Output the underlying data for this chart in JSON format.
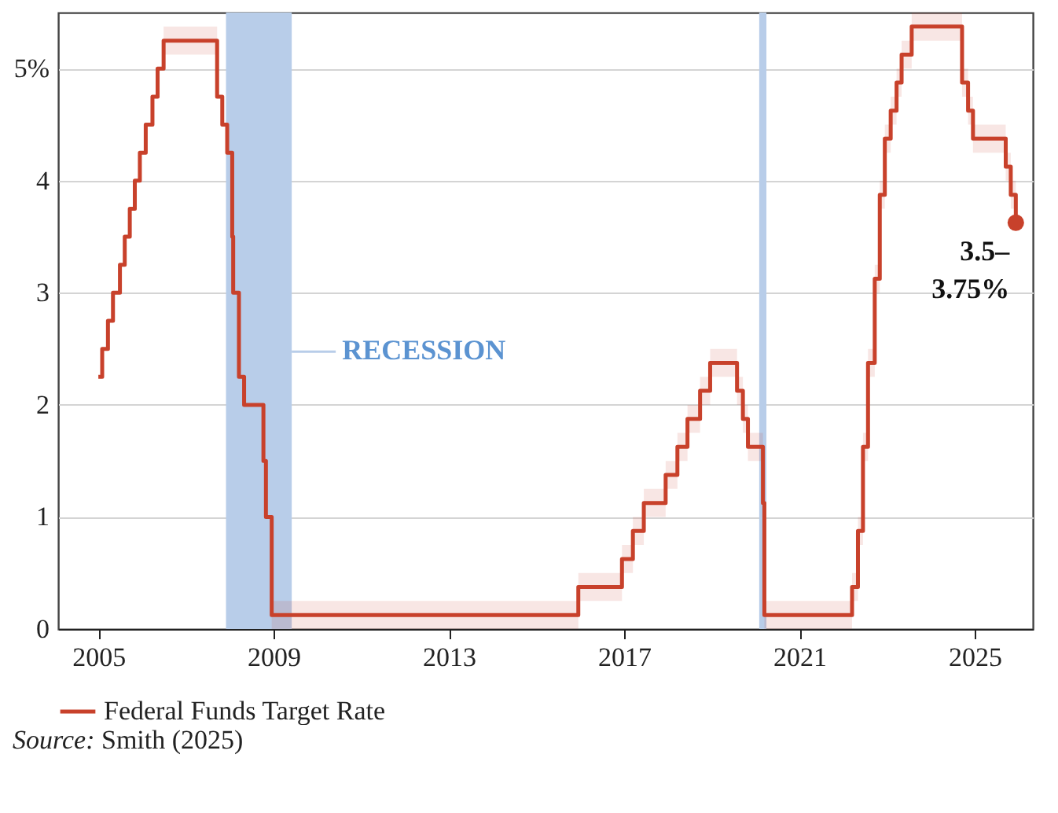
{
  "chart_data": {
    "type": "step",
    "xlim": [
      "2004-02",
      "2026-05"
    ],
    "xticks": [
      "2005",
      "2009",
      "2013",
      "2017",
      "2021",
      "2025"
    ],
    "ylim": [
      0,
      5.5
    ],
    "yticks": [
      0,
      1,
      2,
      3,
      4,
      {
        "value": 5,
        "label": "5%"
      }
    ],
    "grid": "y",
    "legend": "bottom",
    "marker": "none",
    "line_style": "solid",
    "x": [
      "2005-01-01",
      "2005-02-02",
      "2005-03-22",
      "2005-05-03",
      "2005-06-30",
      "2005-08-09",
      "2005-09-20",
      "2005-11-01",
      "2005-12-13",
      "2006-01-31",
      "2006-03-28",
      "2006-05-10",
      "2006-06-29",
      "2007-09-18",
      "2007-10-31",
      "2007-12-11",
      "2008-01-22",
      "2008-01-30",
      "2008-03-18",
      "2008-04-30",
      "2008-10-08",
      "2008-10-29",
      "2008-12-16",
      "2015-12-16",
      "2016-12-14",
      "2017-03-15",
      "2017-06-14",
      "2017-12-13",
      "2018-03-21",
      "2018-06-13",
      "2018-09-26",
      "2018-12-19",
      "2019-07-31",
      "2019-09-18",
      "2019-10-30",
      "2020-03-03",
      "2020-03-15",
      "2022-03-16",
      "2022-05-04",
      "2022-06-15",
      "2022-07-27",
      "2022-09-21",
      "2022-11-02",
      "2022-12-14",
      "2023-02-01",
      "2023-03-22",
      "2023-05-03",
      "2023-07-26",
      "2024-09-18",
      "2024-11-07",
      "2024-12-18",
      "2025-09-17",
      "2025-10-29",
      "2025-12-10"
    ],
    "series": [
      {
        "name": "Federal Funds Target Rate",
        "color": "#c8412b",
        "values": [
          2.25,
          2.5,
          2.75,
          3.0,
          3.25,
          3.5,
          3.75,
          4.0,
          4.25,
          4.5,
          4.75,
          5.0,
          5.25,
          4.75,
          4.5,
          4.25,
          3.5,
          3.0,
          2.25,
          2.0,
          1.5,
          1.0,
          0.125,
          0.375,
          0.625,
          0.875,
          1.125,
          1.375,
          1.625,
          1.875,
          2.125,
          2.375,
          2.125,
          1.875,
          1.625,
          1.125,
          0.125,
          0.375,
          0.875,
          1.625,
          2.375,
          3.125,
          3.875,
          4.375,
          4.625,
          4.875,
          5.125,
          5.375,
          4.875,
          4.625,
          4.375,
          4.125,
          3.875,
          3.625
        ],
        "lower": [
          null,
          null,
          null,
          null,
          null,
          null,
          null,
          null,
          null,
          null,
          null,
          null,
          5.125,
          null,
          null,
          null,
          null,
          null,
          null,
          null,
          null,
          null,
          0,
          0.25,
          0.5,
          0.75,
          1.0,
          1.25,
          1.5,
          1.75,
          2.0,
          2.25,
          2.0,
          1.75,
          1.5,
          1.0,
          0,
          0.25,
          0.75,
          1.5,
          2.25,
          3.0,
          3.75,
          4.25,
          4.5,
          4.75,
          5.0,
          5.25,
          4.75,
          4.5,
          4.25,
          4.0,
          3.75,
          3.5
        ],
        "upper": [
          null,
          null,
          null,
          null,
          null,
          null,
          null,
          null,
          null,
          null,
          null,
          null,
          5.375,
          null,
          null,
          null,
          null,
          null,
          null,
          null,
          null,
          null,
          0.25,
          0.5,
          0.75,
          1.0,
          1.25,
          1.5,
          1.75,
          2.0,
          2.25,
          2.5,
          2.25,
          2.0,
          1.75,
          1.25,
          0.25,
          0.5,
          1.0,
          1.75,
          2.5,
          3.25,
          4.0,
          4.5,
          4.75,
          5.0,
          5.25,
          5.5,
          5.0,
          4.75,
          4.5,
          4.25,
          4.0,
          3.75
        ]
      }
    ],
    "bands": [
      {
        "axis": "x",
        "from": "2007-12",
        "to": "2009-06",
        "label": "RECESSION",
        "color": "#b8cde9"
      },
      {
        "axis": "x",
        "from": "2020-02",
        "to": "2020-04",
        "color": "#b8cde9"
      }
    ],
    "annotations": [
      {
        "text": "3.5–3.75%",
        "x": "2025-12-10",
        "y": 3.625
      },
      "Source: Smith (2025)"
    ]
  }
}
